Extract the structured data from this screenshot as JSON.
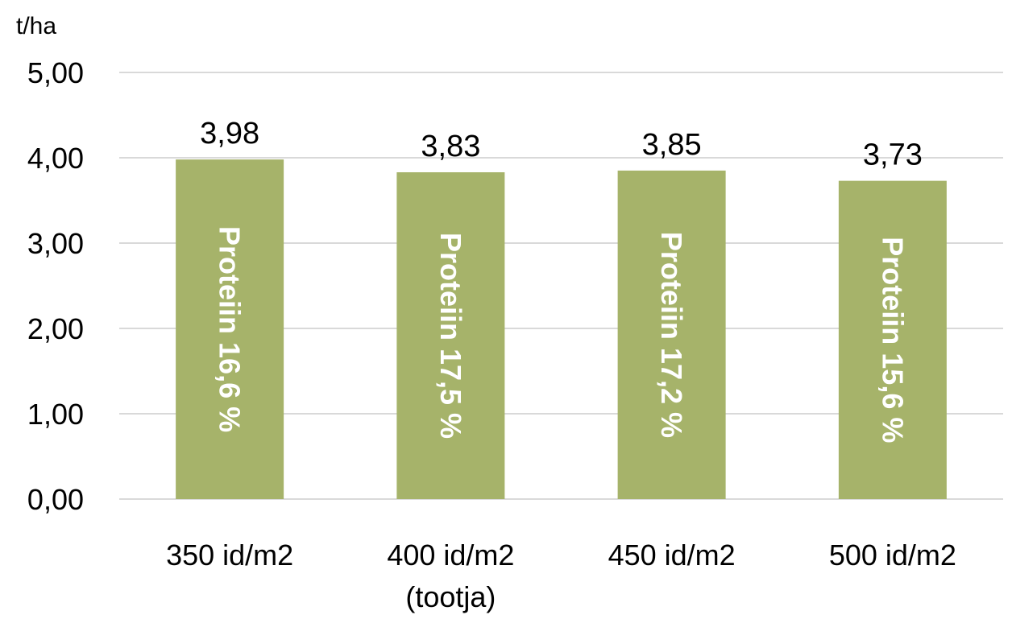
{
  "chart_data": {
    "type": "bar",
    "y_unit": "t/ha",
    "ylim": [
      0,
      5
    ],
    "y_ticks": [
      "0,00",
      "1,00",
      "2,00",
      "3,00",
      "4,00",
      "5,00"
    ],
    "grid": true,
    "bar_color": "#a6b36a",
    "grid_color": "#d9d9d9",
    "categories": [
      [
        "350 id/m2"
      ],
      [
        "400 id/m2",
        "(tootja)"
      ],
      [
        "450 id/m2"
      ],
      [
        "500 id/m2"
      ]
    ],
    "values": [
      3.98,
      3.83,
      3.85,
      3.73
    ],
    "value_labels": [
      "3,98",
      "3,83",
      "3,85",
      "3,73"
    ],
    "bar_labels": [
      "Proteiin 16,6 %",
      "Proteiin 17,5 %",
      "Proteiin 17,2 %",
      "Proteiin 15,6 %"
    ]
  }
}
